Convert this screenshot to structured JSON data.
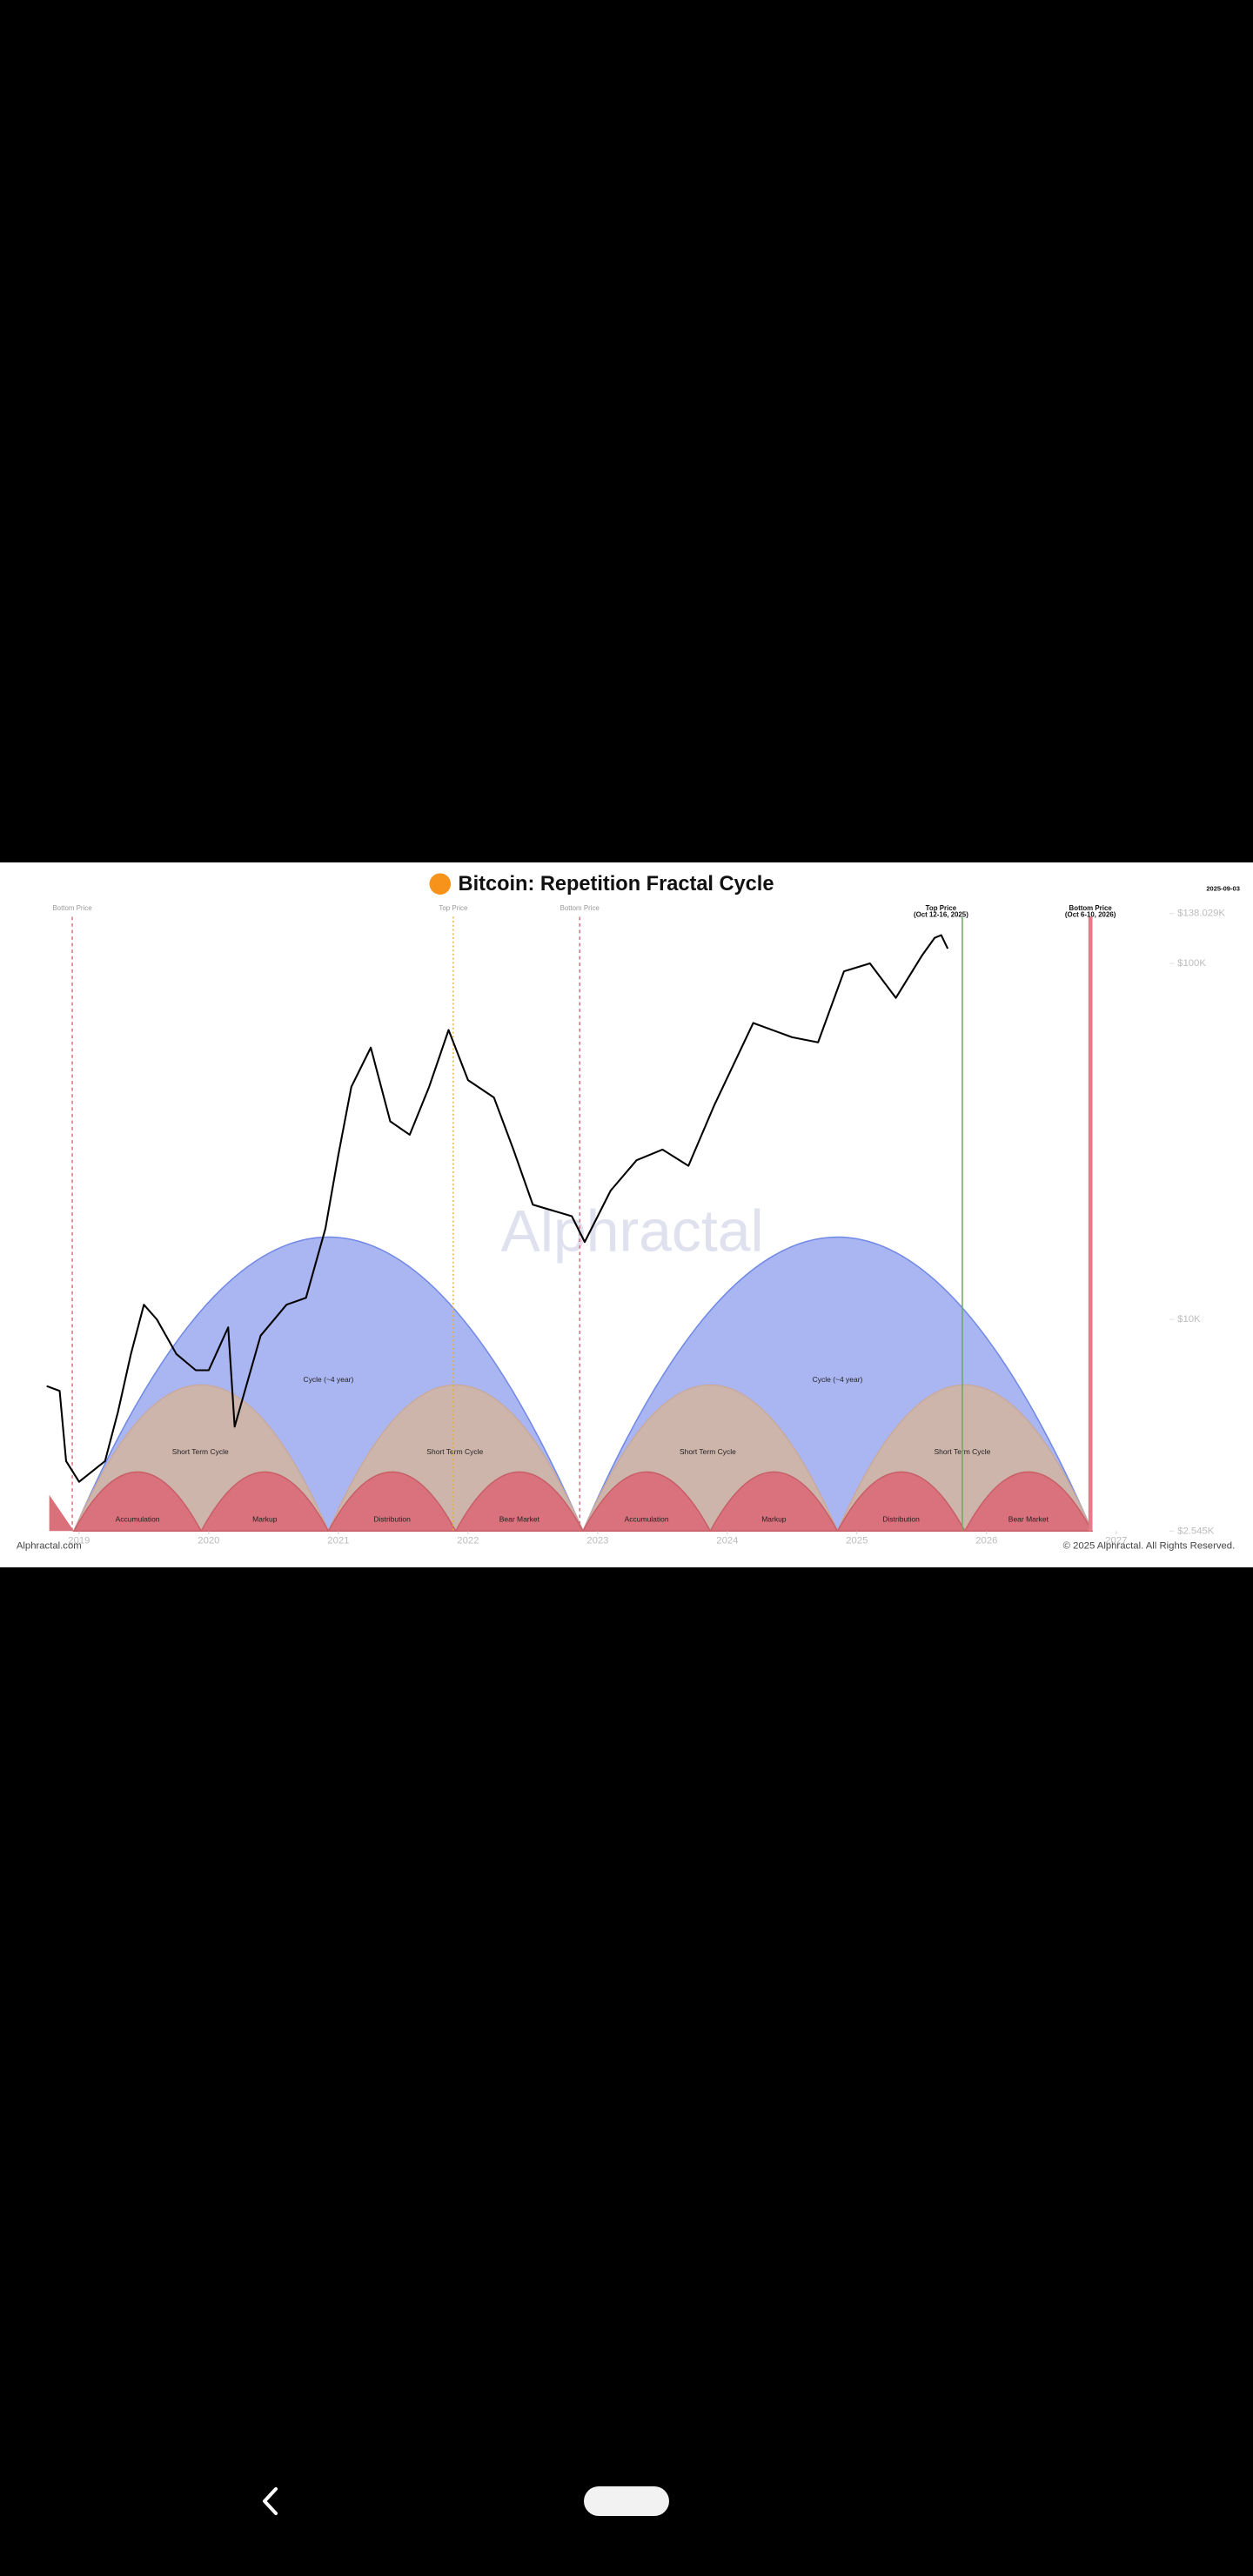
{
  "chart_data": {
    "type": "line",
    "title": "Bitcoin: Repetition Fractal Cycle",
    "date": "2025-09-03",
    "source": "Alphractal.com",
    "copyright": "© 2025 Alphractal. All Rights Reserved.",
    "watermark": "Alphractal",
    "color": "#000000",
    "log_scale": true,
    "x": [
      2018.75,
      2018.85,
      2018.9,
      2019.0,
      2019.2,
      2019.3,
      2019.4,
      2019.5,
      2019.6,
      2019.75,
      2019.9,
      2020.0,
      2020.15,
      2020.2,
      2020.4,
      2020.6,
      2020.75,
      2020.9,
      2021.0,
      2021.1,
      2021.25,
      2021.4,
      2021.55,
      2021.7,
      2021.85,
      2022.0,
      2022.2,
      2022.35,
      2022.5,
      2022.8,
      2022.9,
      2023.1,
      2023.3,
      2023.5,
      2023.7,
      2023.9,
      2024.2,
      2024.5,
      2024.7,
      2024.9,
      2025.1,
      2025.3,
      2025.5,
      2025.6,
      2025.65,
      2025.7
    ],
    "values": [
      6500,
      6300,
      4000,
      3500,
      4000,
      5500,
      8000,
      11000,
      10000,
      8000,
      7200,
      7200,
      9500,
      5000,
      9000,
      11000,
      11500,
      18000,
      29000,
      45000,
      58000,
      36000,
      33000,
      45000,
      65000,
      47000,
      42000,
      30000,
      21000,
      19500,
      16500,
      23000,
      28000,
      30000,
      27000,
      40000,
      68000,
      62000,
      60000,
      95000,
      100000,
      80000,
      105000,
      118000,
      120000,
      110000
    ],
    "xlim": [
      2018.77,
      2027.13
    ],
    "xticks": [
      2019,
      2020,
      2021,
      2022,
      2023,
      2024,
      2025,
      2026,
      2027
    ],
    "ylim": [
      2545,
      138029
    ],
    "yticks": [
      {
        "value": 2545,
        "label": "$2.545K"
      },
      {
        "value": 10000,
        "label": "$10K"
      },
      {
        "value": 100000,
        "label": "$100K"
      },
      {
        "value": 138029,
        "label": "$138.029K"
      }
    ],
    "annotations": [
      {
        "text": "Bottom Price"
      },
      {
        "text": "Top Price"
      },
      {
        "text": "Bottom Price"
      },
      {
        "text": "Top Price",
        "note": "(Oct 12-16, 2025)"
      },
      {
        "text": "Bottom Price",
        "note": "(Oct 6-10, 2026)"
      }
    ],
    "cycles": [
      "Cycle (~4 year)",
      "Cycle (~4 year)"
    ],
    "short_cycles": [
      "Short Term Cycle",
      "Short Term Cycle",
      "Short Term Cycle",
      "Short Term Cycle"
    ],
    "phases": [
      "Accumulation",
      "Markup",
      "Distribution",
      "Bear Market",
      "Accumulation",
      "Markup",
      "Distribution",
      "Bear Market"
    ]
  }
}
